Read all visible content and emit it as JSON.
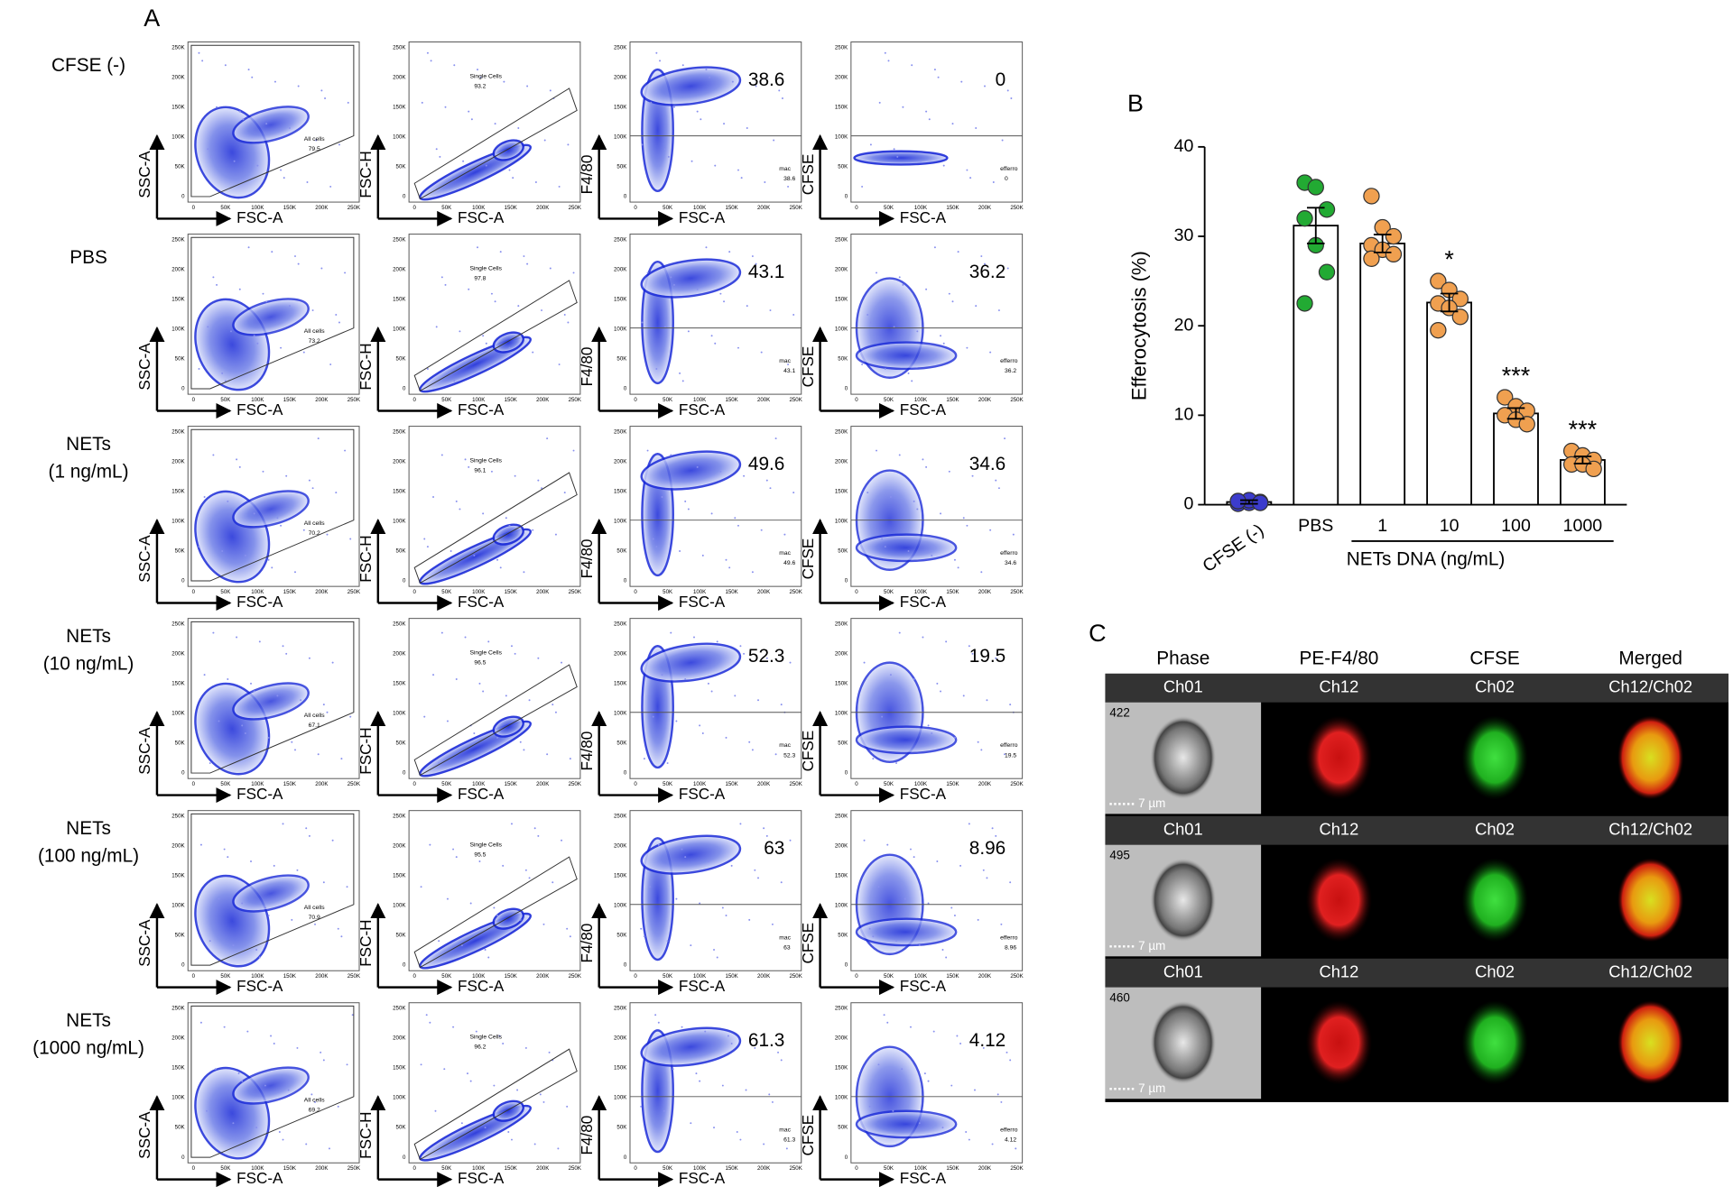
{
  "panel_labels": [
    "A",
    "B",
    "C"
  ],
  "flow_panel": {
    "x_label": "FSC-A",
    "y_labels": [
      "SSC-A",
      "FSC-H",
      "F4/80",
      "CFSE"
    ],
    "axis_ticks": [
      "0",
      "50K",
      "100K",
      "150K",
      "200K",
      "250K"
    ],
    "gate_names": [
      "All cells",
      "Single Cells",
      "mac",
      "efferro"
    ],
    "rows": [
      {
        "label": [
          "CFSE (-)"
        ],
        "values": [
          79.5,
          93.2,
          38.6,
          0
        ]
      },
      {
        "label": [
          "PBS"
        ],
        "values": [
          73.2,
          97.8,
          43.1,
          36.2
        ]
      },
      {
        "label": [
          "NETs",
          "(1 ng/mL)"
        ],
        "values": [
          70.2,
          96.1,
          49.6,
          34.6
        ]
      },
      {
        "label": [
          "NETs",
          "(10 ng/mL)"
        ],
        "values": [
          67.1,
          96.5,
          52.3,
          19.5
        ]
      },
      {
        "label": [
          "NETs",
          "(100 ng/mL)"
        ],
        "values": [
          70.9,
          95.5,
          63,
          8.96
        ]
      },
      {
        "label": [
          "NETs",
          "(1000 ng/mL)"
        ],
        "values": [
          69.2,
          96.2,
          61.3,
          4.12
        ]
      }
    ]
  },
  "chart_data": {
    "type": "bar",
    "y_label": "Efferocytosis (%)",
    "categories": [
      "CFSE (-)",
      "PBS",
      "1",
      "10",
      "100",
      "1000"
    ],
    "values": [
      0.3,
      31.2,
      29.2,
      22.6,
      10.2,
      5.0
    ],
    "errors": [
      0.2,
      2.0,
      1.0,
      1.0,
      0.6,
      0.4
    ],
    "points": [
      [
        0.1,
        0.2,
        0.3,
        0.4,
        0.5,
        0.2,
        0.4
      ],
      [
        36,
        35.5,
        33,
        32,
        29,
        26,
        22.5
      ],
      [
        34.5,
        31,
        30,
        29,
        28.5,
        28,
        27.5
      ],
      [
        25,
        24,
        23,
        22.5,
        22,
        21,
        19.5
      ],
      [
        12,
        11,
        10.5,
        10,
        9.5,
        9
      ],
      [
        6,
        5.5,
        5,
        4.5,
        4.5,
        4
      ]
    ],
    "point_colors": [
      "#3c3ccc",
      "#22aa33",
      "#f0a050",
      "#f0a050",
      "#f0a050",
      "#f0a050"
    ],
    "bar_color": "#ffffff",
    "annotations": [
      null,
      null,
      null,
      "*",
      "***",
      "***"
    ],
    "group_label": "NETs DNA (ng/mL)",
    "ylim": [
      0,
      40
    ],
    "yticks": [
      0,
      10,
      20,
      30,
      40
    ]
  },
  "imaging_panel": {
    "headers": [
      "Phase",
      "PE-F4/80",
      "CFSE",
      "Merged"
    ],
    "scale_label": "7 µm",
    "rows": [
      {
        "id": "422",
        "channels": [
          "Ch01",
          "Ch12",
          "Ch02",
          "Ch12/Ch02"
        ]
      },
      {
        "id": "495",
        "channels": [
          "Ch01",
          "Ch12",
          "Ch02",
          "Ch12/Ch02"
        ]
      },
      {
        "id": "460",
        "channels": [
          "Ch01",
          "Ch12",
          "Ch02",
          "Ch12/Ch02"
        ]
      }
    ]
  }
}
